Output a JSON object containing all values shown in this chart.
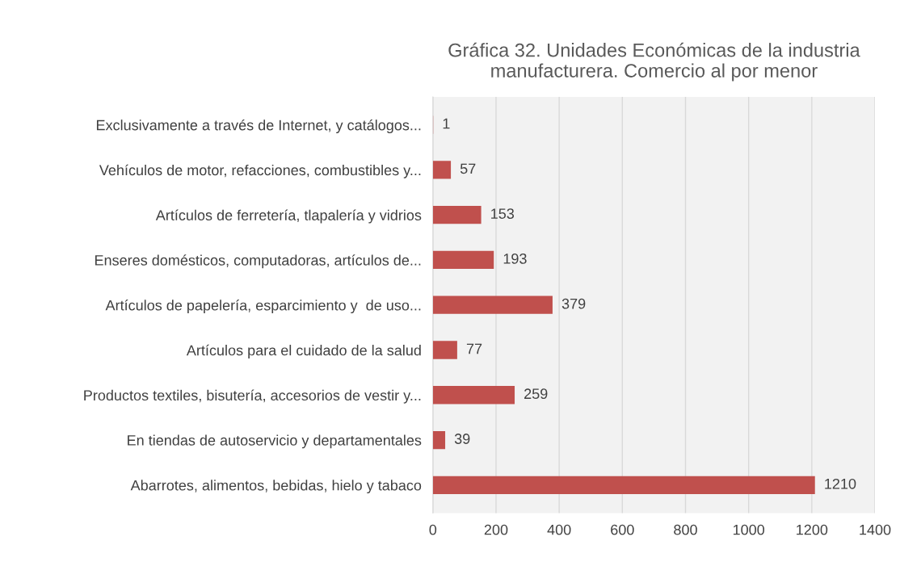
{
  "chart_data": {
    "type": "bar",
    "orientation": "horizontal",
    "title": "Gráfica 32. Unidades Económicas de la industria manufacturera. Comercio al por menor",
    "categories": [
      "Exclusivamente a través de Internet, y catálogos...",
      "Vehículos de motor, refacciones, combustibles y...",
      "Artículos de ferretería, tlapalería y vidrios",
      "Enseres domésticos, computadoras, artículos de...",
      "Artículos de papelería, esparcimiento y  de uso...",
      "Artículos para el cuidado de la salud",
      "Productos textiles, bisutería, accesorios de vestir y...",
      "En tiendas de autoservicio y departamentales",
      "Abarrotes, alimentos, bebidas, hielo y tabaco"
    ],
    "values": [
      1,
      57,
      153,
      193,
      379,
      77,
      259,
      39,
      1210
    ],
    "color": "#c0504d",
    "xlim": [
      0,
      1400
    ],
    "xticks": [
      0,
      200,
      400,
      600,
      800,
      1000,
      1200,
      1400
    ],
    "grid": "x",
    "data_labels": true
  }
}
